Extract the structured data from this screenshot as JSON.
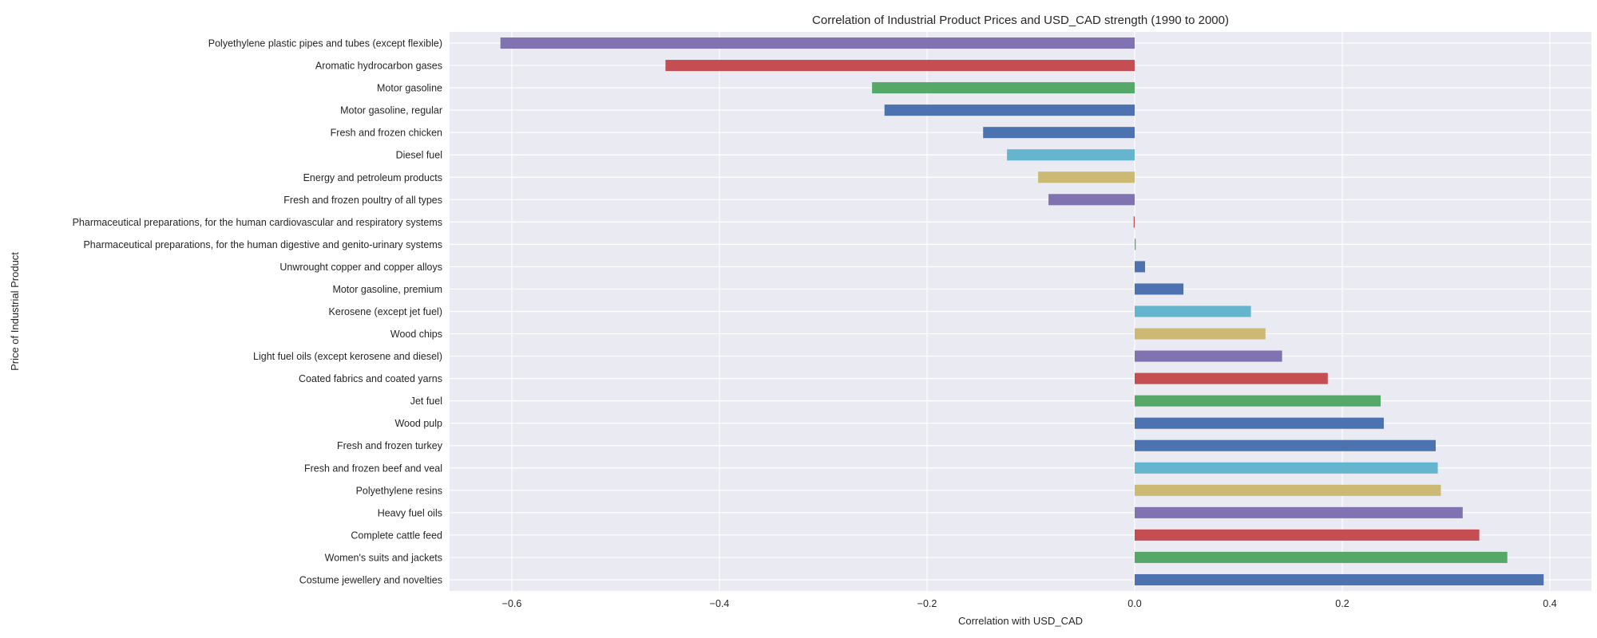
{
  "chart_data": {
    "type": "bar",
    "orientation": "horizontal",
    "title": "Correlation of Industrial Product Prices and USD_CAD strength (1990 to 2000)",
    "xlabel": "Correlation with USD_CAD",
    "ylabel": "Price of Industrial Product",
    "xlim": [
      -0.66,
      0.44
    ],
    "xticks": [
      -0.6,
      -0.4,
      -0.2,
      0.0,
      0.2,
      0.4
    ],
    "xtick_labels": [
      "−0.6",
      "−0.4",
      "−0.2",
      "0.0",
      "0.2",
      "0.4"
    ],
    "grid": true,
    "background": "#EAEAF2",
    "palette": [
      "#4C72B0",
      "#55A868",
      "#C44E52",
      "#8172B2",
      "#CCB974",
      "#64B5CD"
    ],
    "categories": [
      "Polyethylene plastic pipes and tubes (except flexible)",
      "Aromatic hydrocarbon gases",
      "Motor gasoline",
      "Motor gasoline, regular",
      "Fresh and frozen chicken",
      "Diesel fuel",
      "Energy and petroleum products",
      "Fresh and frozen poultry of all types",
      "Pharmaceutical preparations, for the human cardiovascular and respiratory systems",
      "Pharmaceutical preparations, for the human digestive and genito-urinary systems",
      "Unwrought copper and copper alloys",
      "Motor gasoline, premium",
      "Kerosene (except jet fuel)",
      "Wood chips",
      "Light fuel oils (except kerosene and diesel)",
      "Coated fabrics and coated yarns",
      "Jet fuel",
      "Wood pulp",
      "Fresh and frozen turkey",
      "Fresh and frozen beef and veal",
      "Polyethylene resins",
      "Heavy fuel oils",
      "Complete cattle feed",
      "Women's suits and jackets",
      "Costume jewellery and novelties"
    ],
    "values": [
      -0.611,
      -0.452,
      -0.253,
      -0.241,
      -0.146,
      -0.123,
      -0.093,
      -0.083,
      -0.001,
      0.001,
      0.01,
      0.047,
      0.112,
      0.126,
      0.142,
      0.186,
      0.237,
      0.24,
      0.29,
      0.292,
      0.295,
      0.316,
      0.332,
      0.359,
      0.394
    ],
    "bar_colors": [
      "#8172B2",
      "#C44E52",
      "#55A868",
      "#4C72B0",
      "#4C72B0",
      "#64B5CD",
      "#CCB974",
      "#8172B2",
      "#C44E52",
      "#55A868",
      "#4C72B0",
      "#4C72B0",
      "#64B5CD",
      "#CCB974",
      "#8172B2",
      "#C44E52",
      "#55A868",
      "#4C72B0",
      "#4C72B0",
      "#64B5CD",
      "#CCB974",
      "#8172B2",
      "#C44E52",
      "#55A868",
      "#4C72B0"
    ]
  }
}
